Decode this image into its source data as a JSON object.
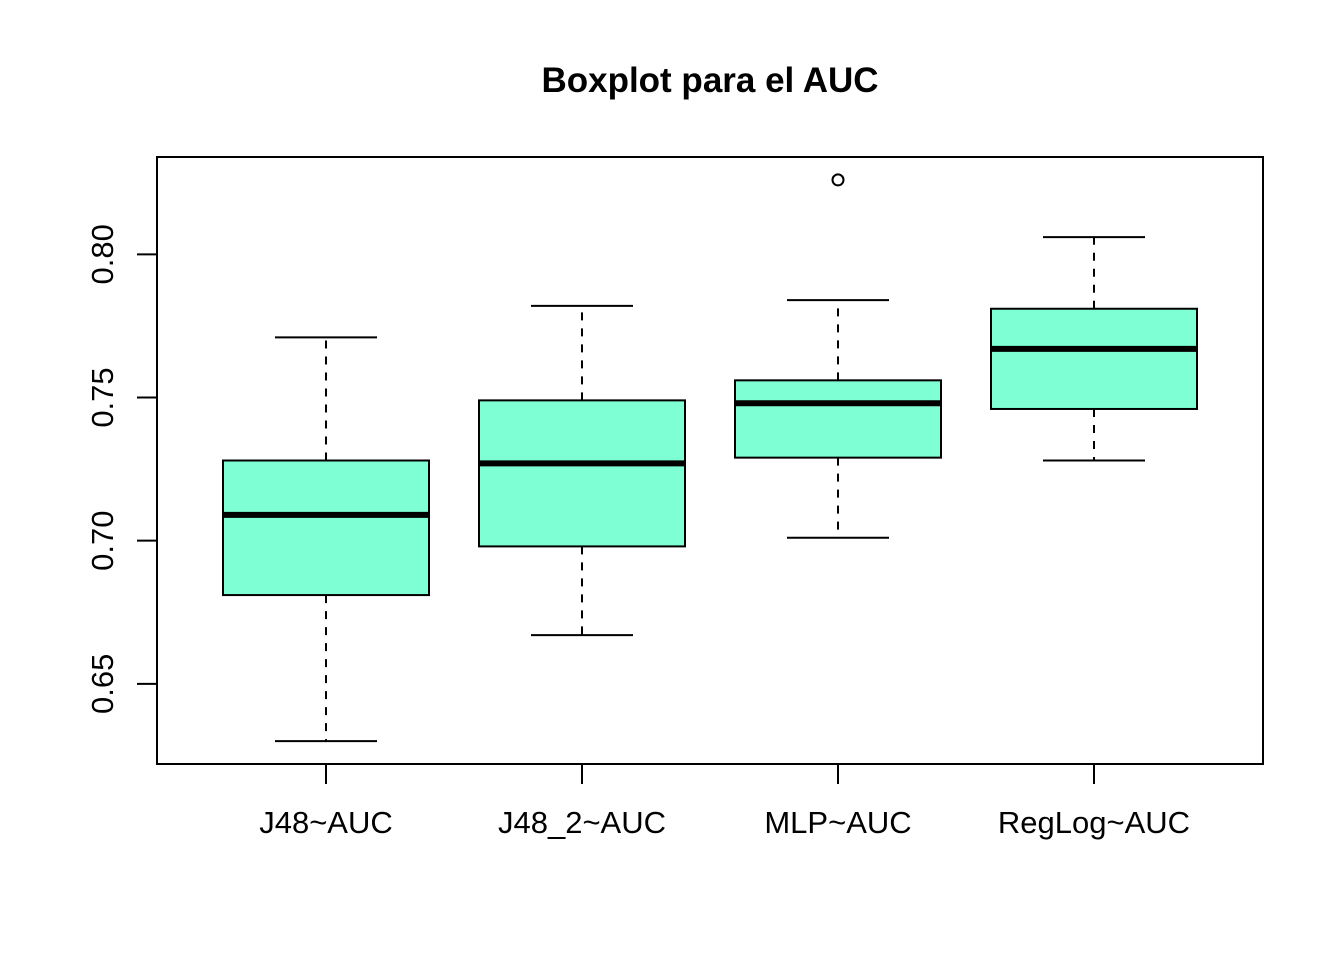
{
  "chart_data": {
    "type": "boxplot",
    "title": "Boxplot para el AUC",
    "xlabel": "",
    "ylabel": "",
    "categories": [
      "J48~AUC",
      "J48_2~AUC",
      "MLP~AUC",
      "RegLog~AUC"
    ],
    "boxes": [
      {
        "category": "J48~AUC",
        "whisker_low": 0.63,
        "q1": 0.681,
        "median": 0.709,
        "q3": 0.728,
        "whisker_high": 0.771,
        "outliers": []
      },
      {
        "category": "J48_2~AUC",
        "whisker_low": 0.667,
        "q1": 0.698,
        "median": 0.727,
        "q3": 0.749,
        "whisker_high": 0.782,
        "outliers": []
      },
      {
        "category": "MLP~AUC",
        "whisker_low": 0.701,
        "q1": 0.729,
        "median": 0.748,
        "q3": 0.756,
        "whisker_high": 0.784,
        "outliers": [
          0.826
        ]
      },
      {
        "category": "RegLog~AUC",
        "whisker_low": 0.728,
        "q1": 0.746,
        "median": 0.767,
        "q3": 0.781,
        "whisker_high": 0.806,
        "outliers": []
      }
    ],
    "ylim": [
      0.622,
      0.834
    ],
    "yticks": [
      0.65,
      0.7,
      0.75,
      0.8
    ],
    "ytick_labels": [
      "0.65",
      "0.70",
      "0.75",
      "0.80"
    ],
    "box_fill": "#7fffd4",
    "line_color": "#000000",
    "grid": false,
    "legend": "none"
  }
}
